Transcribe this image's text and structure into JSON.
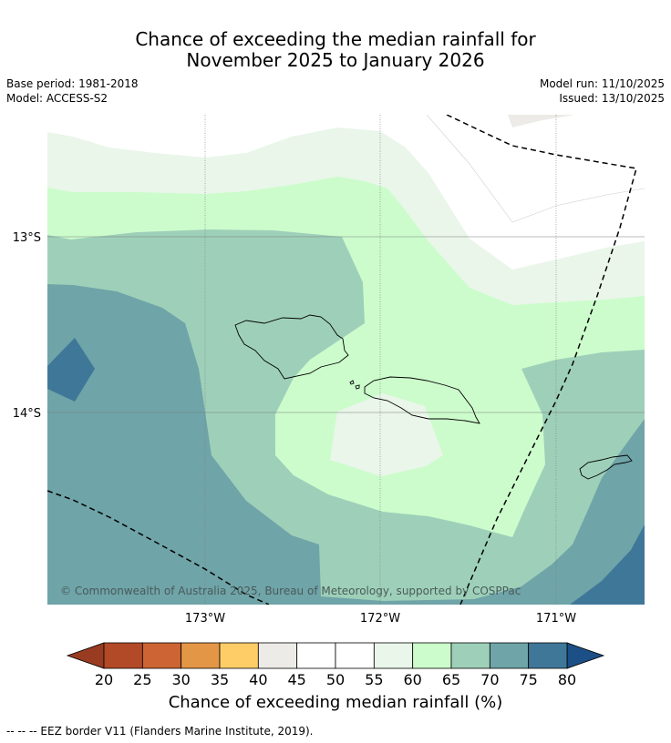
{
  "header": {
    "title_line1": "Chance of exceeding the median rainfall for",
    "title_line2": "November 2025 to January 2026",
    "base_period": "Base period: 1981-2018",
    "model": "Model: ACCESS-S2",
    "model_run": "Model run: 11/10/2025",
    "issued": "Issued: 13/10/2025"
  },
  "map": {
    "latitude_labels": [
      "13°S",
      "14°S"
    ],
    "longitude_labels": [
      "173°W",
      "172°W",
      "171°W"
    ],
    "copyright": "© Commonwealth of Australia 2025, Bureau of Meteorology, supported by COSPPac",
    "category_colors": {
      "40-45": "#ecebe7",
      "45-55": "#ffffff",
      "55-60": "#eaf6ea",
      "60-65": "#ccfccc",
      "65-70": "#9ed0b9",
      "70-75": "#6fa4a8",
      "75-80": "#3f7799"
    }
  },
  "colorbar": {
    "ticks": [
      "20",
      "25",
      "30",
      "35",
      "40",
      "45",
      "50",
      "55",
      "60",
      "65",
      "70",
      "75",
      "80"
    ],
    "colors": [
      "#b34a27",
      "#cc6533",
      "#e39646",
      "#fecd68",
      "#ecebe7",
      "#ffffff",
      "#ffffff",
      "#eaf6ea",
      "#ccfccc",
      "#9ed0b9",
      "#6fa4a8",
      "#3f7799"
    ],
    "low_extension_color": "#993b20",
    "high_extension_color": "#1b4f85",
    "label": "Chance of exceeding median rainfall (%)"
  },
  "legend": {
    "eez_note": "--  --  -- EEZ border V11 (Flanders Marine Institute, 2019)."
  }
}
